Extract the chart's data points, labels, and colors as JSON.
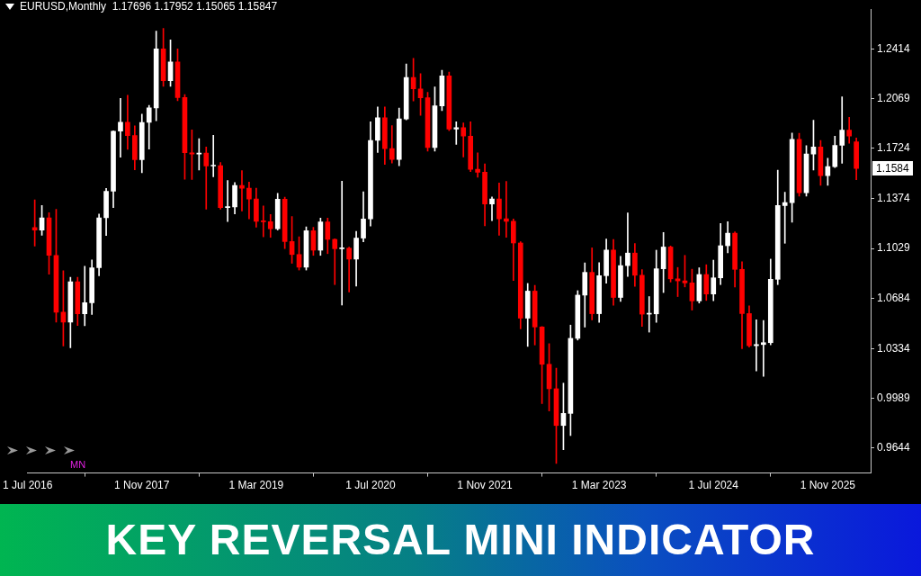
{
  "chart_data": {
    "type": "candlestick",
    "title": "EURUSD,Monthly  1.17696 1.17952 1.15065 1.15847",
    "x": [
      "2016-08",
      "2016-09",
      "2016-10",
      "2016-11",
      "2016-12",
      "2017-01",
      "2017-02",
      "2017-03",
      "2017-04",
      "2017-05",
      "2017-06",
      "2017-07",
      "2017-08",
      "2017-09",
      "2017-10",
      "2017-11",
      "2017-12",
      "2018-01",
      "2018-02",
      "2018-03",
      "2018-04",
      "2018-05",
      "2018-06",
      "2018-07",
      "2018-08",
      "2018-09",
      "2018-10",
      "2018-11",
      "2018-12",
      "2019-01",
      "2019-02",
      "2019-03",
      "2019-04",
      "2019-05",
      "2019-06",
      "2019-07",
      "2019-08",
      "2019-09",
      "2019-10",
      "2019-11",
      "2019-12",
      "2020-01",
      "2020-02",
      "2020-03",
      "2020-04",
      "2020-05",
      "2020-06",
      "2020-07",
      "2020-08",
      "2020-09",
      "2020-10",
      "2020-11",
      "2020-12",
      "2021-01",
      "2021-02",
      "2021-03",
      "2021-04",
      "2021-05",
      "2021-06",
      "2021-07",
      "2021-08",
      "2021-09",
      "2021-10",
      "2021-11",
      "2021-12",
      "2022-01",
      "2022-02",
      "2022-03",
      "2022-04",
      "2022-05",
      "2022-06",
      "2022-07",
      "2022-08",
      "2022-09",
      "2022-10",
      "2022-11",
      "2022-12",
      "2023-01",
      "2023-02",
      "2023-03",
      "2023-04",
      "2023-05",
      "2023-06",
      "2023-07",
      "2023-08",
      "2023-09",
      "2023-10",
      "2023-11",
      "2023-12",
      "2024-01",
      "2024-02",
      "2024-03",
      "2024-04",
      "2024-05",
      "2024-06",
      "2024-07",
      "2024-08",
      "2024-09",
      "2024-10",
      "2024-11",
      "2024-12",
      "2025-01",
      "2025-02",
      "2025-03",
      "2025-04",
      "2025-05",
      "2025-06",
      "2025-07",
      "2025-08",
      "2025-09",
      "2025-10",
      "2025-11",
      "2025-12",
      "2026-01",
      "2026-02",
      "2026-03"
    ],
    "ohlc": [
      [
        1.1174,
        1.1366,
        1.1046,
        1.1157
      ],
      [
        1.1157,
        1.1327,
        1.1121,
        1.1241
      ],
      [
        1.1241,
        1.1278,
        1.0851,
        1.0981
      ],
      [
        1.0981,
        1.13,
        1.0518,
        1.0587
      ],
      [
        1.0587,
        1.0875,
        1.0352,
        1.0517
      ],
      [
        1.0517,
        1.0829,
        1.034,
        1.0798
      ],
      [
        1.0798,
        1.0829,
        1.0494,
        1.0575
      ],
      [
        1.0575,
        1.0906,
        1.0493,
        1.0652
      ],
      [
        1.0652,
        1.095,
        1.057,
        1.0895
      ],
      [
        1.0895,
        1.1268,
        1.0839,
        1.1242
      ],
      [
        1.1242,
        1.1446,
        1.1119,
        1.1426
      ],
      [
        1.1426,
        1.1846,
        1.1313,
        1.1843
      ],
      [
        1.1843,
        1.207,
        1.1662,
        1.1905
      ],
      [
        1.1905,
        1.2092,
        1.1717,
        1.1813
      ],
      [
        1.1813,
        1.188,
        1.1575,
        1.1645
      ],
      [
        1.1645,
        1.1961,
        1.1554,
        1.1904
      ],
      [
        1.1904,
        1.2023,
        1.1718,
        1.2005
      ],
      [
        1.2005,
        1.2537,
        1.1916,
        1.2414
      ],
      [
        1.2414,
        1.2556,
        1.2155,
        1.2193
      ],
      [
        1.2193,
        1.2476,
        1.2155,
        1.2323
      ],
      [
        1.2323,
        1.2414,
        1.2055,
        1.2077
      ],
      [
        1.2077,
        1.2097,
        1.151,
        1.1693
      ],
      [
        1.1693,
        1.1852,
        1.1508,
        1.1684
      ],
      [
        1.1684,
        1.1791,
        1.1574,
        1.1691
      ],
      [
        1.1691,
        1.1734,
        1.1301,
        1.1601
      ],
      [
        1.1601,
        1.1815,
        1.1526,
        1.1604
      ],
      [
        1.1604,
        1.1625,
        1.1302,
        1.1313
      ],
      [
        1.1313,
        1.15,
        1.1216,
        1.1317
      ],
      [
        1.1317,
        1.1486,
        1.1269,
        1.1467
      ],
      [
        1.1467,
        1.157,
        1.1289,
        1.1447
      ],
      [
        1.1447,
        1.1489,
        1.1234,
        1.1372
      ],
      [
        1.1372,
        1.1448,
        1.1176,
        1.1217
      ],
      [
        1.1217,
        1.1324,
        1.111,
        1.1214
      ],
      [
        1.1214,
        1.1264,
        1.1106,
        1.1166
      ],
      [
        1.1166,
        1.1412,
        1.1157,
        1.1371
      ],
      [
        1.1371,
        1.1385,
        1.1028,
        1.1077
      ],
      [
        1.1077,
        1.125,
        1.0926,
        1.0987
      ],
      [
        1.0987,
        1.111,
        1.0879,
        1.0899
      ],
      [
        1.0899,
        1.1179,
        1.0879,
        1.1152
      ],
      [
        1.1152,
        1.1176,
        1.0981,
        1.1017
      ],
      [
        1.1017,
        1.124,
        1.0981,
        1.1213
      ],
      [
        1.1213,
        1.1239,
        1.0993,
        1.1092
      ],
      [
        1.1092,
        1.1096,
        1.0778,
        1.1027
      ],
      [
        1.1027,
        1.1496,
        1.0636,
        1.1031
      ],
      [
        1.1031,
        1.1039,
        1.0727,
        1.0955
      ],
      [
        1.0955,
        1.1147,
        1.0767,
        1.1101
      ],
      [
        1.1101,
        1.1422,
        1.1075,
        1.1234
      ],
      [
        1.1234,
        1.1909,
        1.1185,
        1.1779
      ],
      [
        1.1779,
        1.2011,
        1.1696,
        1.1936
      ],
      [
        1.1936,
        1.2011,
        1.1612,
        1.1722
      ],
      [
        1.1722,
        1.1881,
        1.1622,
        1.1647
      ],
      [
        1.1647,
        1.2004,
        1.1603,
        1.1928
      ],
      [
        1.1928,
        1.231,
        1.1922,
        1.2216
      ],
      [
        1.2216,
        1.2349,
        1.2053,
        1.2137
      ],
      [
        1.2137,
        1.2243,
        1.1953,
        1.2075
      ],
      [
        1.2075,
        1.2113,
        1.1704,
        1.173
      ],
      [
        1.173,
        1.215,
        1.1704,
        1.2019
      ],
      [
        1.2019,
        1.2266,
        1.1986,
        1.2227
      ],
      [
        1.2227,
        1.2254,
        1.1847,
        1.1858
      ],
      [
        1.1858,
        1.1909,
        1.1752,
        1.1868
      ],
      [
        1.1868,
        1.19,
        1.1664,
        1.1809
      ],
      [
        1.1809,
        1.1909,
        1.1563,
        1.1578
      ],
      [
        1.1578,
        1.1692,
        1.1524,
        1.1558
      ],
      [
        1.1558,
        1.1616,
        1.1186,
        1.1337
      ],
      [
        1.1337,
        1.1386,
        1.1222,
        1.1372
      ],
      [
        1.1372,
        1.1483,
        1.1121,
        1.1235
      ],
      [
        1.1235,
        1.1495,
        1.1106,
        1.1218
      ],
      [
        1.1218,
        1.1234,
        1.0806,
        1.1067
      ],
      [
        1.1067,
        1.1076,
        1.0471,
        1.0545
      ],
      [
        1.0545,
        1.0786,
        1.0349,
        1.0733
      ],
      [
        1.0733,
        1.0773,
        1.0359,
        1.0484
      ],
      [
        1.0484,
        1.0487,
        0.9952,
        1.0225
      ],
      [
        1.0225,
        1.0368,
        0.9901,
        1.0055
      ],
      [
        1.0055,
        1.0198,
        0.9536,
        0.98
      ],
      [
        0.98,
        1.0094,
        0.9632,
        0.9884
      ],
      [
        0.9884,
        1.0497,
        0.973,
        1.0405
      ],
      [
        1.0405,
        1.0736,
        1.0393,
        1.0705
      ],
      [
        1.0705,
        1.0929,
        1.0483,
        1.0863
      ],
      [
        1.0863,
        1.1033,
        1.0533,
        1.0576
      ],
      [
        1.0576,
        1.093,
        1.0516,
        1.084
      ],
      [
        1.084,
        1.1095,
        1.0788,
        1.1018
      ],
      [
        1.1018,
        1.1092,
        1.0635,
        1.0689
      ],
      [
        1.0689,
        1.0975,
        1.0662,
        1.091
      ],
      [
        1.091,
        1.1276,
        1.0834,
        1.0997
      ],
      [
        1.0997,
        1.1064,
        1.0766,
        1.0843
      ],
      [
        1.0843,
        1.0882,
        1.0488,
        1.0573
      ],
      [
        1.0573,
        1.0695,
        1.0448,
        1.0575
      ],
      [
        1.0575,
        1.1017,
        1.0516,
        1.0888
      ],
      [
        1.0888,
        1.114,
        1.0723,
        1.1039
      ],
      [
        1.1039,
        1.1046,
        1.0796,
        1.0818
      ],
      [
        1.0818,
        1.0897,
        1.0695,
        1.0804
      ],
      [
        1.0804,
        1.0981,
        1.0762,
        1.079
      ],
      [
        1.079,
        1.0885,
        1.0601,
        1.0665
      ],
      [
        1.0665,
        1.0895,
        1.065,
        1.0848
      ],
      [
        1.0848,
        1.0916,
        1.0668,
        1.0713
      ],
      [
        1.0713,
        1.0948,
        1.0666,
        1.0825
      ],
      [
        1.0825,
        1.1202,
        1.0778,
        1.1048
      ],
      [
        1.1048,
        1.1214,
        1.0999,
        1.1135
      ],
      [
        1.1135,
        1.1144,
        1.0761,
        1.0884
      ],
      [
        1.0884,
        1.0937,
        1.0333,
        1.0577
      ],
      [
        1.0577,
        1.063,
        1.0344,
        1.0354
      ],
      [
        1.0354,
        1.0533,
        1.0178,
        1.0362
      ],
      [
        1.0362,
        1.0529,
        1.0141,
        1.0375
      ],
      [
        1.0375,
        1.0955,
        1.036,
        1.0815
      ],
      [
        1.0815,
        1.1573,
        1.0778,
        1.1327
      ],
      [
        1.1327,
        1.142,
        1.1065,
        1.1347
      ],
      [
        1.1347,
        1.183,
        1.1211,
        1.1787
      ],
      [
        1.1787,
        1.1829,
        1.1392,
        1.1415
      ],
      [
        1.1415,
        1.1743,
        1.1392,
        1.1685
      ],
      [
        1.1685,
        1.1919,
        1.1573,
        1.1733
      ],
      [
        1.1733,
        1.1778,
        1.1468,
        1.1535
      ],
      [
        1.1535,
        1.1655,
        1.1468,
        1.1597
      ],
      [
        1.1597,
        1.1808,
        1.159,
        1.1745
      ],
      [
        1.1745,
        1.2082,
        1.162,
        1.185
      ],
      [
        1.185,
        1.194,
        1.176,
        1.181
      ],
      [
        1.17696,
        1.17952,
        1.15065,
        1.15847
      ]
    ],
    "colors": [
      "#ff0000",
      "#ffffff",
      "#ff0000",
      "#ff0000",
      "#ff0000",
      "#ffffff",
      "#ff0000",
      "#ffffff",
      "#ffffff",
      "#ffffff",
      "#ffffff",
      "#ffffff",
      "#ffffff",
      "#ff0000",
      "#ff0000",
      "#ffffff",
      "#ffffff",
      "#ffffff",
      "#ff0000",
      "#ffffff",
      "#ff0000",
      "#ff0000",
      "#ff0000",
      "#ffffff",
      "#ff0000",
      "#ffffff",
      "#ff0000",
      "#ffffff",
      "#ffffff",
      "#ff0000",
      "#ff0000",
      "#ff0000",
      "#ff0000",
      "#ff0000",
      "#ffffff",
      "#ff0000",
      "#ff0000",
      "#ff0000",
      "#ffffff",
      "#ff0000",
      "#ffffff",
      "#ff0000",
      "#ff0000",
      "#ffffff",
      "#ff0000",
      "#ffffff",
      "#ffffff",
      "#ffffff",
      "#ffffff",
      "#ff0000",
      "#ff0000",
      "#ffffff",
      "#ffffff",
      "#ff0000",
      "#ff0000",
      "#ff0000",
      "#ffffff",
      "#ffffff",
      "#ff0000",
      "#ffffff",
      "#ff0000",
      "#ff0000",
      "#ff0000",
      "#ff0000",
      "#ffffff",
      "#ff0000",
      "#ff0000",
      "#ff0000",
      "#ff0000",
      "#ffffff",
      "#ff0000",
      "#ff0000",
      "#ff0000",
      "#ff0000",
      "#ffffff",
      "#ffffff",
      "#ffffff",
      "#ffffff",
      "#ff0000",
      "#ffffff",
      "#ffffff",
      "#ff0000",
      "#ffffff",
      "#ffffff",
      "#ff0000",
      "#ff0000",
      "#ffffff",
      "#ffffff",
      "#ffffff",
      "#ff0000",
      "#ff0000",
      "#ff0000",
      "#ff0000",
      "#ffffff",
      "#ff0000",
      "#ffffff",
      "#ffffff",
      "#ffffff",
      "#ff0000",
      "#ff0000",
      "#ff0000",
      "#ffffff",
      "#ffffff",
      "#ffffff",
      "#ffffff",
      "#ffffff",
      "#ffffff",
      "#ff0000",
      "#ffffff",
      "#ffffff",
      "#ff0000",
      "#ffffff",
      "#ffffff",
      "#ffffff",
      "#ff0000",
      "#ff0000"
    ],
    "xlim": [
      "2016-07",
      "2026-05"
    ],
    "xticks": [
      {
        "value": "2016-07",
        "label": "1 Jul 2016"
      },
      {
        "value": "2017-11",
        "label": "1 Nov 2017"
      },
      {
        "value": "2019-03",
        "label": "1 Mar 2019"
      },
      {
        "value": "2020-07",
        "label": "1 Jul 2020"
      },
      {
        "value": "2021-11",
        "label": "1 Nov 2021"
      },
      {
        "value": "2023-03",
        "label": "1 Mar 2023"
      },
      {
        "value": "2024-07",
        "label": "1 Jul 2024"
      },
      {
        "value": "2025-11",
        "label": "1 Nov 2025"
      }
    ],
    "ylim": [
      0.947,
      1.269
    ],
    "yticks": [
      0.9644,
      0.9989,
      1.0334,
      1.0684,
      1.1029,
      1.1374,
      1.1724,
      1.2069,
      1.2414
    ],
    "annotations": [
      "KEY REVERSAL MINI INDICATOR",
      "MN",
      "1.1584"
    ]
  }
}
